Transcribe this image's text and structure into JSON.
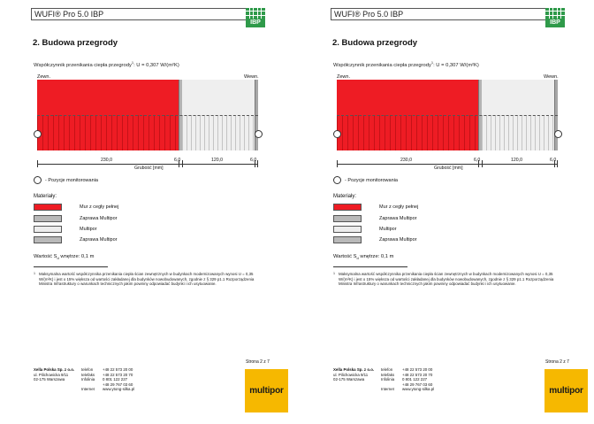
{
  "header": {
    "app_title": "WUFI® Pro 5.0 IBP",
    "logo_text": "IBP"
  },
  "section_title": "2. Budowa przegrody",
  "u_coefficient": {
    "label": "Współczynnik przenikania ciepła przegrody",
    "sup": "1",
    "value": ": U = 0,307 W/(m²K)"
  },
  "wall": {
    "outside_label": "Zewn.",
    "inside_label": "Wewn.",
    "dimensions": [
      "230,0",
      "6,0",
      "120,0",
      "6,0"
    ],
    "axis_label": "Grubość [mm]"
  },
  "monitor_legend": "- Pozycje monitorowania",
  "materials": {
    "title": "Materiały:",
    "items": [
      {
        "name": "Mur z cegły pełnej",
        "color": "#ee1c24"
      },
      {
        "name": "Zaprawa Multipor",
        "color": "#b9b9b9"
      },
      {
        "name": "Multipor",
        "color": "#ededed"
      },
      {
        "name": "Zaprawa Multipor",
        "color": "#b9b9b9"
      }
    ]
  },
  "sd_value": {
    "prefix": "Wartość S",
    "sub": "d",
    "suffix": " wnętrze: 0,1 m"
  },
  "footnote": {
    "num": "1",
    "text": "Maksymalna wartość współczynnika przenikania ciepła ścian zewnętrznych w budynkach modernizowanych wynosi U = 0,35 W/(m²K) i jest o 15% większa od wartości zakładanej dla budynków nowobudowanych, zgodnie z § 329 p1.1 Rozporządzenia Ministra Infrastruktury o warunkach technicznych jakim powinny odpowiadać budynki i ich usytuowanie."
  },
  "page_number": "Strona 2 z 7",
  "company": {
    "name": "Xella Polska Sp. z o.o.",
    "street": "ul. Pilichowicka 9/11",
    "city": "02-175 Warszawa"
  },
  "contacts": [
    {
      "key": "telefon",
      "value": "+48 22 573 20 00"
    },
    {
      "key": "telefaks",
      "value": "+48 22 573 20 70"
    },
    {
      "key": "Infolinia",
      "value": "0 801 122 227"
    },
    {
      "key": "",
      "value": "+48 29 767 03 60"
    },
    {
      "key": "Internet",
      "value": "www.ytong-silka.pl"
    }
  ],
  "brand_logo": "multipor"
}
